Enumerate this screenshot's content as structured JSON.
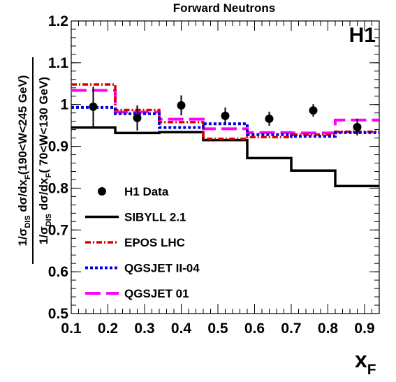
{
  "chart_data": {
    "type": "line",
    "title": "Forward Neutrons",
    "experiment_label": "H1",
    "xlabel": {
      "main": "x",
      "sub": "F"
    },
    "ylabel": {
      "numerator": {
        "prefix": "1/σ",
        "sub1": "DIS",
        "mid": " dσ/dx",
        "sub2": "F",
        "range": "(190<W<245 GeV)"
      },
      "denominator": {
        "prefix": "1/σ",
        "sub1": "DIS",
        "mid": " dσ/dx",
        "sub2": "F",
        "range": "( 70<W<130 GeV)"
      }
    },
    "xlim": [
      0.1,
      0.94
    ],
    "ylim": [
      0.5,
      1.2
    ],
    "xticks": [
      "0.1",
      "0.2",
      "0.3",
      "0.4",
      "0.5",
      "0.6",
      "0.7",
      "0.8",
      "0.9"
    ],
    "yticks": [
      "0.5",
      "0.6",
      "0.7",
      "0.8",
      "0.9",
      "1",
      "1.1",
      "1.2"
    ],
    "grid": false,
    "legend_position": "bottom-left",
    "bin_edges": [
      0.1,
      0.22,
      0.34,
      0.46,
      0.58,
      0.7,
      0.82,
      0.94
    ],
    "data_points": {
      "name": "H1 Data",
      "x": [
        0.16,
        0.28,
        0.4,
        0.52,
        0.64,
        0.76,
        0.88
      ],
      "y": [
        0.995,
        0.968,
        0.998,
        0.973,
        0.966,
        0.986,
        0.946
      ],
      "err": [
        0.048,
        0.03,
        0.024,
        0.02,
        0.017,
        0.015,
        0.02
      ]
    },
    "series": [
      {
        "name": "SIBYLL 2.1",
        "color": "#000000",
        "style": "solid",
        "values": [
          0.945,
          0.932,
          0.934,
          0.915,
          0.872,
          0.842,
          0.805
        ]
      },
      {
        "name": "EPOS LHC",
        "color": "#dd0000",
        "style": "dashdot",
        "values": [
          1.048,
          0.987,
          0.958,
          0.918,
          0.922,
          0.928,
          0.935
        ]
      },
      {
        "name": "QGSJET II-04",
        "color": "#0000dd",
        "style": "dotted",
        "values": [
          0.993,
          0.978,
          0.945,
          0.954,
          0.928,
          0.924,
          0.933
        ]
      },
      {
        "name": "QGSJET 01",
        "color": "#ff00ff",
        "style": "longdash",
        "values": [
          1.034,
          0.982,
          0.965,
          0.942,
          0.933,
          0.932,
          0.963
        ]
      }
    ]
  }
}
